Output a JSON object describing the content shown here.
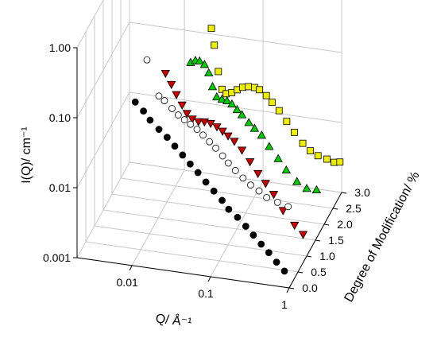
{
  "chart_data": {
    "type": "scatter3d",
    "xlabel": "Q/ Å⁻¹",
    "ylabel": "Degree of Modification/ %",
    "zlabel": "I(Q)/ cm⁻¹",
    "xscale": "log",
    "zscale": "log",
    "xlim": [
      0.002,
      1
    ],
    "xticks": [
      0.01,
      0.1,
      1
    ],
    "ylim": [
      0,
      3
    ],
    "yticks": [
      {
        "value": 0,
        "label": "0.0"
      },
      0.5,
      {
        "value": 1,
        "label": "1.0"
      },
      1.5,
      {
        "value": 2,
        "label": "2.0"
      },
      2.5,
      {
        "value": 3,
        "label": "3.0"
      }
    ],
    "zlim": [
      0.001,
      1
    ],
    "zticks": [
      0.001,
      0.01,
      {
        "value": 0.1,
        "label": "0.10"
      },
      {
        "value": 1,
        "label": "1.00"
      }
    ],
    "grid": true,
    "series": [
      {
        "color": "#000000",
        "marker": "circle-filled",
        "y": 0,
        "x": [
          0.011,
          0.014,
          0.017,
          0.022,
          0.028,
          0.035,
          0.044,
          0.055,
          0.069,
          0.087,
          0.11,
          0.14,
          0.17,
          0.22,
          0.28,
          0.35,
          0.44,
          0.55,
          0.69,
          0.87
        ],
        "values": [
          0.22,
          0.17,
          0.13,
          0.1,
          0.08,
          0.062,
          0.048,
          0.037,
          0.029,
          0.022,
          0.017,
          0.013,
          0.01,
          0.008,
          0.0062,
          0.0048,
          0.0037,
          0.0029,
          0.0022,
          0.0017
        ]
      },
      {
        "color": "#ffffff",
        "marker": "circle-open",
        "y": 0.5,
        "x": [
          0.012,
          0.017,
          0.02,
          0.025,
          0.03,
          0.036,
          0.043,
          0.052,
          0.062,
          0.075,
          0.09,
          0.11,
          0.13,
          0.16,
          0.2,
          0.25,
          0.32,
          0.4,
          0.55,
          0.75
        ],
        "values": [
          0.53,
          0.17,
          0.15,
          0.12,
          0.1,
          0.088,
          0.078,
          0.068,
          0.058,
          0.048,
          0.04,
          0.032,
          0.026,
          0.021,
          0.017,
          0.014,
          0.012,
          0.01,
          0.009,
          0.0082
        ]
      },
      {
        "color": "#cc0000",
        "marker": "triangle-down",
        "y": 1,
        "x": [
          0.016,
          0.019,
          0.022,
          0.026,
          0.03,
          0.035,
          0.042,
          0.05,
          0.06,
          0.072,
          0.085,
          0.1,
          0.12,
          0.15,
          0.19,
          0.24,
          0.3,
          0.38,
          0.5,
          0.7,
          0.9
        ],
        "values": [
          0.21,
          0.15,
          0.11,
          0.08,
          0.062,
          0.053,
          0.05,
          0.051,
          0.05,
          0.046,
          0.041,
          0.036,
          0.031,
          0.024,
          0.017,
          0.012,
          0.009,
          0.0065,
          0.004,
          0.0026,
          0.002
        ]
      },
      {
        "color": "#00cc00",
        "marker": "triangle-up",
        "y": 2,
        "x": [
          0.02,
          0.023,
          0.026,
          0.03,
          0.034,
          0.038,
          0.043,
          0.05,
          0.058,
          0.067,
          0.078,
          0.09,
          0.11,
          0.13,
          0.16,
          0.2,
          0.26,
          0.33,
          0.45,
          0.6,
          0.8
        ],
        "values": [
          0.11,
          0.12,
          0.12,
          0.11,
          0.085,
          0.055,
          0.04,
          0.038,
          0.037,
          0.034,
          0.029,
          0.025,
          0.02,
          0.017,
          0.014,
          0.01,
          0.007,
          0.005,
          0.0036,
          0.003,
          0.003
        ]
      },
      {
        "color": "#eeee00",
        "marker": "square",
        "y": 3,
        "x": [
          0.022,
          0.024,
          0.027,
          0.03,
          0.034,
          0.04,
          0.047,
          0.055,
          0.065,
          0.078,
          0.09,
          0.11,
          0.13,
          0.16,
          0.2,
          0.25,
          0.32,
          0.4,
          0.5,
          0.65,
          0.8,
          0.95
        ],
        "values": [
          0.12,
          0.07,
          0.03,
          0.017,
          0.015,
          0.016,
          0.018,
          0.02,
          0.021,
          0.021,
          0.02,
          0.017,
          0.014,
          0.011,
          0.008,
          0.0058,
          0.0042,
          0.0034,
          0.003,
          0.0028,
          0.0026,
          0.0027
        ]
      }
    ]
  }
}
